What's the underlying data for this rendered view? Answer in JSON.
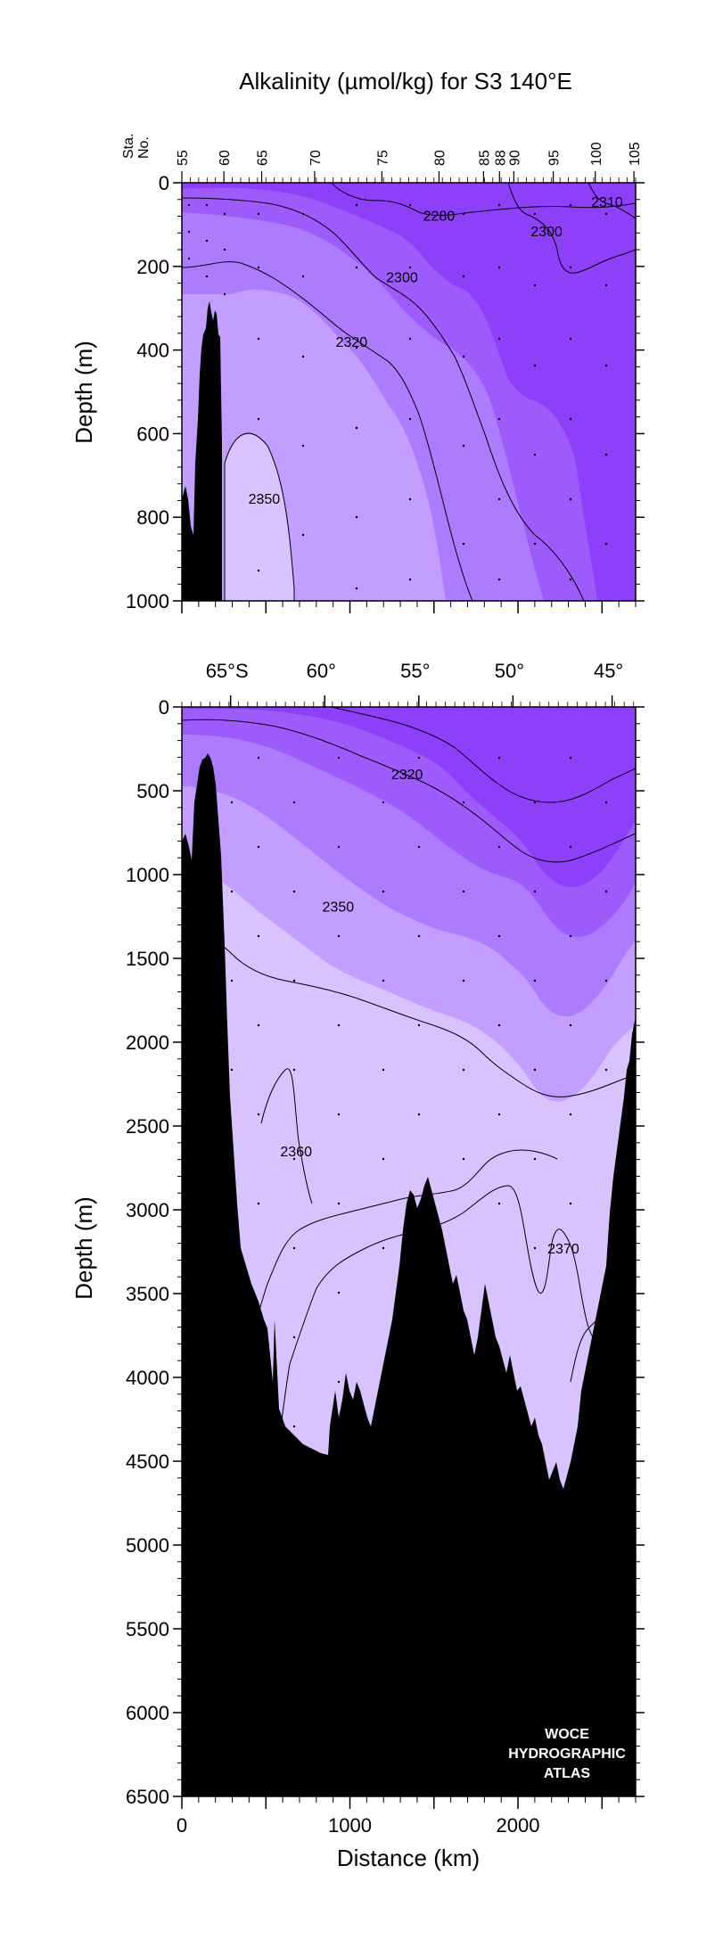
{
  "chart_data": [
    {
      "type": "contour",
      "title": "Alkalinity (µmol/kg) for S3 140°E",
      "ylabel": "Depth (m)",
      "ylim": [
        1000,
        0
      ],
      "xlim": [
        0,
        2700
      ],
      "yticks": [
        0,
        200,
        400,
        600,
        800,
        1000
      ],
      "station_axis_label": [
        "Sta.",
        "No."
      ],
      "stations": [
        {
          "label": "55",
          "km": 0
        },
        {
          "label": "60",
          "km": 250
        },
        {
          "label": "65",
          "km": 475
        },
        {
          "label": "70",
          "km": 790
        },
        {
          "label": "75",
          "km": 1190
        },
        {
          "label": "80",
          "km": 1530
        },
        {
          "label": "85",
          "km": 1795
        },
        {
          "label": "88",
          "km": 1890
        },
        {
          "label": "90",
          "km": 1975
        },
        {
          "label": "95",
          "km": 2210
        },
        {
          "label": "100",
          "km": 2460
        },
        {
          "label": "105",
          "km": 2690
        }
      ],
      "contour_labels": [
        {
          "text": "2280",
          "km": 1530,
          "depth": 78
        },
        {
          "text": "2310",
          "km": 2530,
          "depth": 45
        },
        {
          "text": "2300",
          "km": 2170,
          "depth": 115
        },
        {
          "text": "2300",
          "km": 1310,
          "depth": 225
        },
        {
          "text": "2320",
          "km": 1010,
          "depth": 380
        },
        {
          "text": "2350",
          "km": 490,
          "depth": 755
        }
      ],
      "fill_colors": [
        "#d8c2ff",
        "#c39dff",
        "#ad7bfd",
        "#9d5bfb",
        "#8e3ffa"
      ]
    },
    {
      "type": "contour",
      "ylabel": "Depth (m)",
      "xlabel": "Distance (km)",
      "ylim": [
        6500,
        0
      ],
      "xlim": [
        0,
        2700
      ],
      "yticks": [
        0,
        500,
        1000,
        1500,
        2000,
        2500,
        3000,
        3500,
        4000,
        4500,
        5000,
        5500,
        6000,
        6500
      ],
      "xticks": [
        0,
        1000,
        2000
      ],
      "latitude_ticks": [
        {
          "label": "65°S",
          "km": 290
        },
        {
          "label": "60°",
          "km": 850
        },
        {
          "label": "55°",
          "km": 1410
        },
        {
          "label": "50°",
          "km": 1970
        },
        {
          "label": "45°",
          "km": 2560
        }
      ],
      "contour_labels": [
        {
          "text": "2320",
          "km": 1340,
          "depth": 400
        },
        {
          "text": "2350",
          "km": 930,
          "depth": 1190
        },
        {
          "text": "2360",
          "km": 680,
          "depth": 2650
        },
        {
          "text": "2370",
          "km": 2270,
          "depth": 3230
        }
      ],
      "fill_colors": [
        "#d8c2ff",
        "#c39dff",
        "#ad7bfd",
        "#9d5bfb",
        "#8e3ffa"
      ],
      "logo": [
        "WOCE",
        "HYDROGRAPHIC",
        "ATLAS"
      ]
    }
  ]
}
